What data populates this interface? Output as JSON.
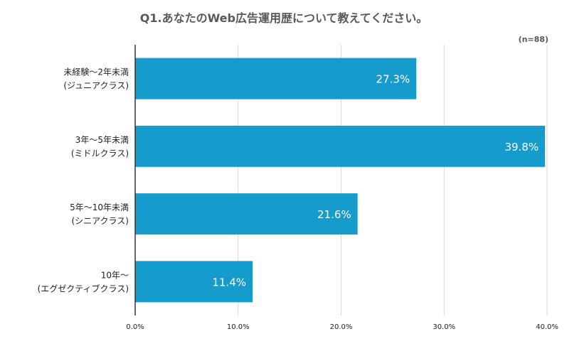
{
  "chart_data": {
    "type": "bar",
    "orientation": "horizontal",
    "title": "Q1.あなたのWeb広告運用歴について教えてください。",
    "annotation": "(n=88)",
    "categories": [
      [
        "未経験〜2年未満",
        "(ジュニアクラス)"
      ],
      [
        "3年〜5年未満",
        "(ミドルクラス)"
      ],
      [
        "5年〜10年未満",
        "(シニアクラス)"
      ],
      [
        "10年〜",
        "(エグゼクティブクラス)"
      ]
    ],
    "values": [
      27.3,
      39.8,
      21.6,
      11.4
    ],
    "data_labels": [
      "27.3%",
      "39.8%",
      "21.6%",
      "11.4%"
    ],
    "xlim": [
      0,
      40
    ],
    "x_ticks": [
      0,
      10,
      20,
      30,
      40
    ],
    "x_tick_labels": [
      "0.0%",
      "10.0%",
      "20.0%",
      "30.0%",
      "40.0%"
    ],
    "xlabel": "",
    "ylabel": "",
    "grid": "vertical",
    "legend": "none",
    "colors": {
      "bar": "#159ccd",
      "grid": "#d9d9d9",
      "axis": "#333333",
      "title": "#595959",
      "label": "#222222",
      "data_label": "#ffffff"
    }
  }
}
